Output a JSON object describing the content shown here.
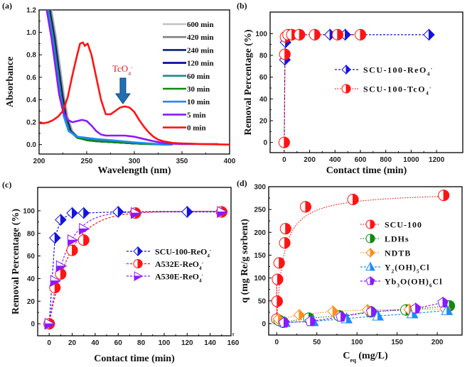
{
  "chart_data": [
    {
      "panel": "(a)",
      "type": "line",
      "xlabel": "Wavelength (nm)",
      "ylabel": "Absorbance",
      "xlim": [
        200,
        400
      ],
      "ylim": [
        -0.04,
        1.2
      ],
      "xticks": [
        200,
        250,
        300,
        350,
        400
      ],
      "yticks": [
        0.0,
        0.2,
        0.4,
        0.6,
        0.8,
        1.0,
        1.2
      ],
      "ytick_labels": [
        "0.0",
        "0.2",
        "0.4",
        "0.6",
        "0.8",
        "1.0",
        "1.2"
      ],
      "legend_position": "top-right",
      "annotation": {
        "text": "TcO",
        "sub": "4",
        "sup": "-",
        "x": 288,
        "y": 0.49,
        "arrow_color": "#1f6fb2"
      },
      "series": [
        {
          "name": "600 min",
          "color": "#c0c0c0",
          "x": [
            213,
            218,
            222,
            226,
            230,
            235,
            240,
            250,
            260,
            280,
            300,
            320,
            340
          ],
          "y": [
            1.2,
            0.95,
            0.7,
            0.45,
            0.25,
            0.12,
            0.07,
            0.04,
            0.03,
            0.02,
            0.01,
            0.005,
            0
          ]
        },
        {
          "name": "420 min",
          "color": "#808080",
          "x": [
            212,
            217,
            221,
            225,
            229,
            234,
            240,
            250,
            260,
            280,
            300,
            320,
            340
          ],
          "y": [
            1.2,
            0.95,
            0.7,
            0.45,
            0.25,
            0.12,
            0.07,
            0.04,
            0.03,
            0.02,
            0.01,
            0.005,
            0
          ]
        },
        {
          "name": "240 min",
          "color": "#0a1f7a",
          "x": [
            211,
            216,
            220,
            224,
            228,
            233,
            240,
            250,
            260,
            280,
            300,
            320,
            340
          ],
          "y": [
            1.2,
            0.95,
            0.7,
            0.45,
            0.25,
            0.12,
            0.07,
            0.04,
            0.03,
            0.02,
            0.01,
            0.005,
            0
          ]
        },
        {
          "name": "120 min",
          "color": "#0000a0",
          "x": [
            211,
            216,
            220,
            224,
            228,
            233,
            240,
            250,
            260,
            280,
            300,
            320,
            340
          ],
          "y": [
            1.2,
            0.95,
            0.7,
            0.45,
            0.25,
            0.12,
            0.07,
            0.04,
            0.03,
            0.02,
            0.01,
            0.005,
            0
          ]
        },
        {
          "name": "60 min",
          "color": "#1a8a8a",
          "x": [
            210,
            215,
            219,
            223,
            227,
            232,
            240,
            250,
            260,
            280,
            300,
            320,
            340
          ],
          "y": [
            1.2,
            0.95,
            0.7,
            0.45,
            0.25,
            0.12,
            0.07,
            0.045,
            0.035,
            0.02,
            0.012,
            0.005,
            0
          ]
        },
        {
          "name": "30 min",
          "color": "#118811",
          "x": [
            210,
            215,
            219,
            223,
            227,
            232,
            240,
            250,
            260,
            280,
            300,
            320,
            335
          ],
          "y": [
            1.2,
            0.95,
            0.7,
            0.45,
            0.25,
            0.12,
            0.06,
            0.04,
            0.03,
            0.02,
            0.01,
            0.003,
            0
          ]
        },
        {
          "name": "10 min",
          "color": "#1a8cff",
          "x": [
            209,
            214,
            218,
            222,
            226,
            231,
            240,
            250,
            260,
            280,
            300,
            320,
            340
          ],
          "y": [
            1.2,
            0.95,
            0.7,
            0.45,
            0.25,
            0.12,
            0.07,
            0.06,
            0.05,
            0.035,
            0.02,
            0.008,
            0
          ]
        },
        {
          "name": "5 min",
          "color": "#8a1aff",
          "x": [
            208,
            213,
            217,
            221,
            225,
            230,
            235,
            240,
            245,
            250,
            255,
            260,
            265,
            270,
            280,
            290,
            300,
            310,
            320,
            330,
            340,
            350,
            388
          ],
          "y": [
            1.2,
            0.95,
            0.7,
            0.45,
            0.3,
            0.22,
            0.2,
            0.21,
            0.22,
            0.21,
            0.17,
            0.12,
            0.09,
            0.08,
            0.08,
            0.08,
            0.07,
            0.05,
            0.03,
            0.015,
            0.008,
            0.004,
            0.005
          ]
        },
        {
          "name": "0 min",
          "color": "#ff1414",
          "x": [
            200,
            205,
            210,
            215,
            220,
            225,
            230,
            235,
            240,
            243,
            246,
            248,
            251,
            255,
            260,
            265,
            270,
            275,
            280,
            285,
            290,
            295,
            300,
            305,
            310,
            315,
            320,
            325,
            330,
            340,
            350,
            360,
            370,
            400
          ],
          "y": [
            0.19,
            0.19,
            0.2,
            0.22,
            0.25,
            0.3,
            0.42,
            0.62,
            0.8,
            0.9,
            0.91,
            0.88,
            0.9,
            0.8,
            0.6,
            0.4,
            0.27,
            0.27,
            0.3,
            0.33,
            0.34,
            0.33,
            0.29,
            0.22,
            0.16,
            0.11,
            0.07,
            0.045,
            0.03,
            0.015,
            0.01,
            0.008,
            0.005,
            0.0
          ]
        }
      ]
    },
    {
      "panel": "(b)",
      "type": "scatter",
      "xlabel": "Contact time (min)",
      "ylabel": "Removal Percentage (%)",
      "xlim": [
        -100,
        1300
      ],
      "ylim": [
        -10,
        110
      ],
      "xticks": [
        0,
        200,
        400,
        600,
        800,
        1000,
        1200
      ],
      "yticks": [
        0,
        20,
        40,
        60,
        80,
        100
      ],
      "legend_position": "center-right",
      "series": [
        {
          "name": "SCU-100-ReO4-",
          "label": "SCU-100-ReO",
          "sub": "4",
          "sup": "-",
          "color": "#1414e0",
          "marker": "half-diamond",
          "line": "dash",
          "x": [
            0,
            5,
            10,
            30,
            60,
            120,
            240,
            360,
            480,
            600,
            1140
          ],
          "y": [
            0,
            76,
            92,
            98,
            99,
            99,
            99,
            99,
            99,
            99,
            99
          ]
        },
        {
          "name": "SCU-100-TcO4-",
          "label": "SCU-100-TcO",
          "sub": "4",
          "sup": "-",
          "color": "#ff1414",
          "marker": "half-circle",
          "line": "dot",
          "x": [
            0,
            5,
            10,
            30,
            60,
            120,
            240,
            420,
            600
          ],
          "y": [
            0,
            81,
            97,
            99,
            99,
            99,
            99,
            99,
            99
          ]
        }
      ]
    },
    {
      "panel": "(c)",
      "type": "scatter",
      "xlabel": "Contact time (min)",
      "ylabel": "Removal Percentage (%)",
      "xlim": [
        -10,
        160
      ],
      "ylim": [
        -10,
        110
      ],
      "xticks": [
        0,
        20,
        40,
        60,
        80,
        100,
        120,
        140,
        160
      ],
      "yticks": [
        0,
        20,
        40,
        60,
        80,
        100
      ],
      "legend_position": "center-right",
      "series": [
        {
          "name": "SCU-100-ReO4-",
          "label": "SCU-100-ReO",
          "sub": "4",
          "sup": "-",
          "color": "#1414e0",
          "marker": "half-diamond",
          "line": "dash",
          "x": [
            0,
            5,
            10,
            20,
            30,
            60,
            120,
            150
          ],
          "y": [
            0,
            76,
            92,
            98,
            98,
            99,
            99,
            99
          ]
        },
        {
          "name": "A532E-ReO4-",
          "label": "A532E-ReO",
          "sub": "4",
          "sup": "-",
          "color": "#ff1414",
          "marker": "half-circle",
          "line": "dash",
          "x": [
            0,
            5,
            10,
            20,
            30,
            75,
            150
          ],
          "y": [
            0,
            32,
            44,
            65,
            74,
            98,
            99
          ]
        },
        {
          "name": "A530E-ReO4-",
          "label": "A530E-ReO",
          "sub": "4",
          "sup": "-",
          "color": "#8a1aff",
          "marker": "half-triangle-right",
          "line": "dash",
          "x": [
            0,
            5,
            10,
            20,
            30,
            75,
            150
          ],
          "y": [
            0,
            38,
            51,
            74,
            84,
            98,
            99
          ]
        }
      ]
    },
    {
      "panel": "(d)",
      "type": "scatter",
      "xlabel": "C",
      "xlabel_sub": "eq",
      "xlabel_rest": " (mg/L)",
      "ylabel": "q (mg Re/g sorbent)",
      "xlim": [
        -10,
        230
      ],
      "ylim": [
        -25,
        300
      ],
      "xticks": [
        0,
        50,
        100,
        150,
        200
      ],
      "yticks": [
        0,
        50,
        100,
        150,
        200,
        250,
        300
      ],
      "legend_position": "center-right",
      "series": [
        {
          "name": "SCU-100",
          "label": "SCU-100",
          "color": "#ff1414",
          "marker": "half-circle",
          "line": "dot",
          "x": [
            0,
            0.5,
            1,
            3,
            10,
            11,
            36,
            95,
            208
          ],
          "y": [
            10,
            49,
            97,
            133,
            177,
            208,
            256,
            272,
            281
          ]
        },
        {
          "name": "LDHs",
          "label": "LDHs",
          "color": "#118811",
          "marker": "half-circle",
          "line": "dot",
          "x": [
            3,
            8,
            40,
            78,
            117,
            161,
            215
          ],
          "y": [
            7,
            3,
            12,
            17,
            26,
            30,
            39
          ]
        },
        {
          "name": "NDTB",
          "label": "NDTB",
          "color": "#ff8c1a",
          "marker": "half-diamond",
          "line": "dot",
          "x": [
            2,
            28,
            70,
            113,
            165,
            210
          ],
          "y": [
            10,
            19,
            27,
            30,
            31,
            32
          ]
        },
        {
          "name": "Y2(OH)5Cl",
          "label": "Y(OH)Cl",
          "color": "#1a8cff",
          "marker": "half-triangle-up",
          "line": "dash",
          "x": [
            10,
            45,
            87,
            126,
            169,
            212
          ],
          "y": [
            3,
            5,
            11,
            17,
            22,
            29
          ]
        },
        {
          "name": "Yb3O(OH)6Cl",
          "label": "Yb3O(OH)6Cl",
          "color": "#8a1aff",
          "marker": "half-pentagon",
          "line": "dash",
          "x": [
            9,
            42,
            80,
            118,
            173,
            207
          ],
          "y": [
            2,
            5,
            15,
            26,
            33,
            46
          ]
        }
      ]
    }
  ],
  "panel_d_legend": [
    {
      "parts": [
        [
          "SCU-100",
          ""
        ]
      ]
    },
    {
      "parts": [
        [
          "LDHs",
          ""
        ]
      ]
    },
    {
      "parts": [
        [
          "NDTB",
          ""
        ]
      ]
    },
    {
      "parts": [
        [
          "Y",
          ""
        ],
        [
          "2",
          "sub"
        ],
        [
          "(OH)",
          ""
        ],
        [
          "5",
          "sub"
        ],
        [
          "Cl",
          ""
        ]
      ]
    },
    {
      "parts": [
        [
          "Yb",
          ""
        ],
        [
          "3",
          "sub"
        ],
        [
          "O(OH)",
          ""
        ],
        [
          "6",
          "sub"
        ],
        [
          "Cl",
          ""
        ]
      ]
    }
  ]
}
